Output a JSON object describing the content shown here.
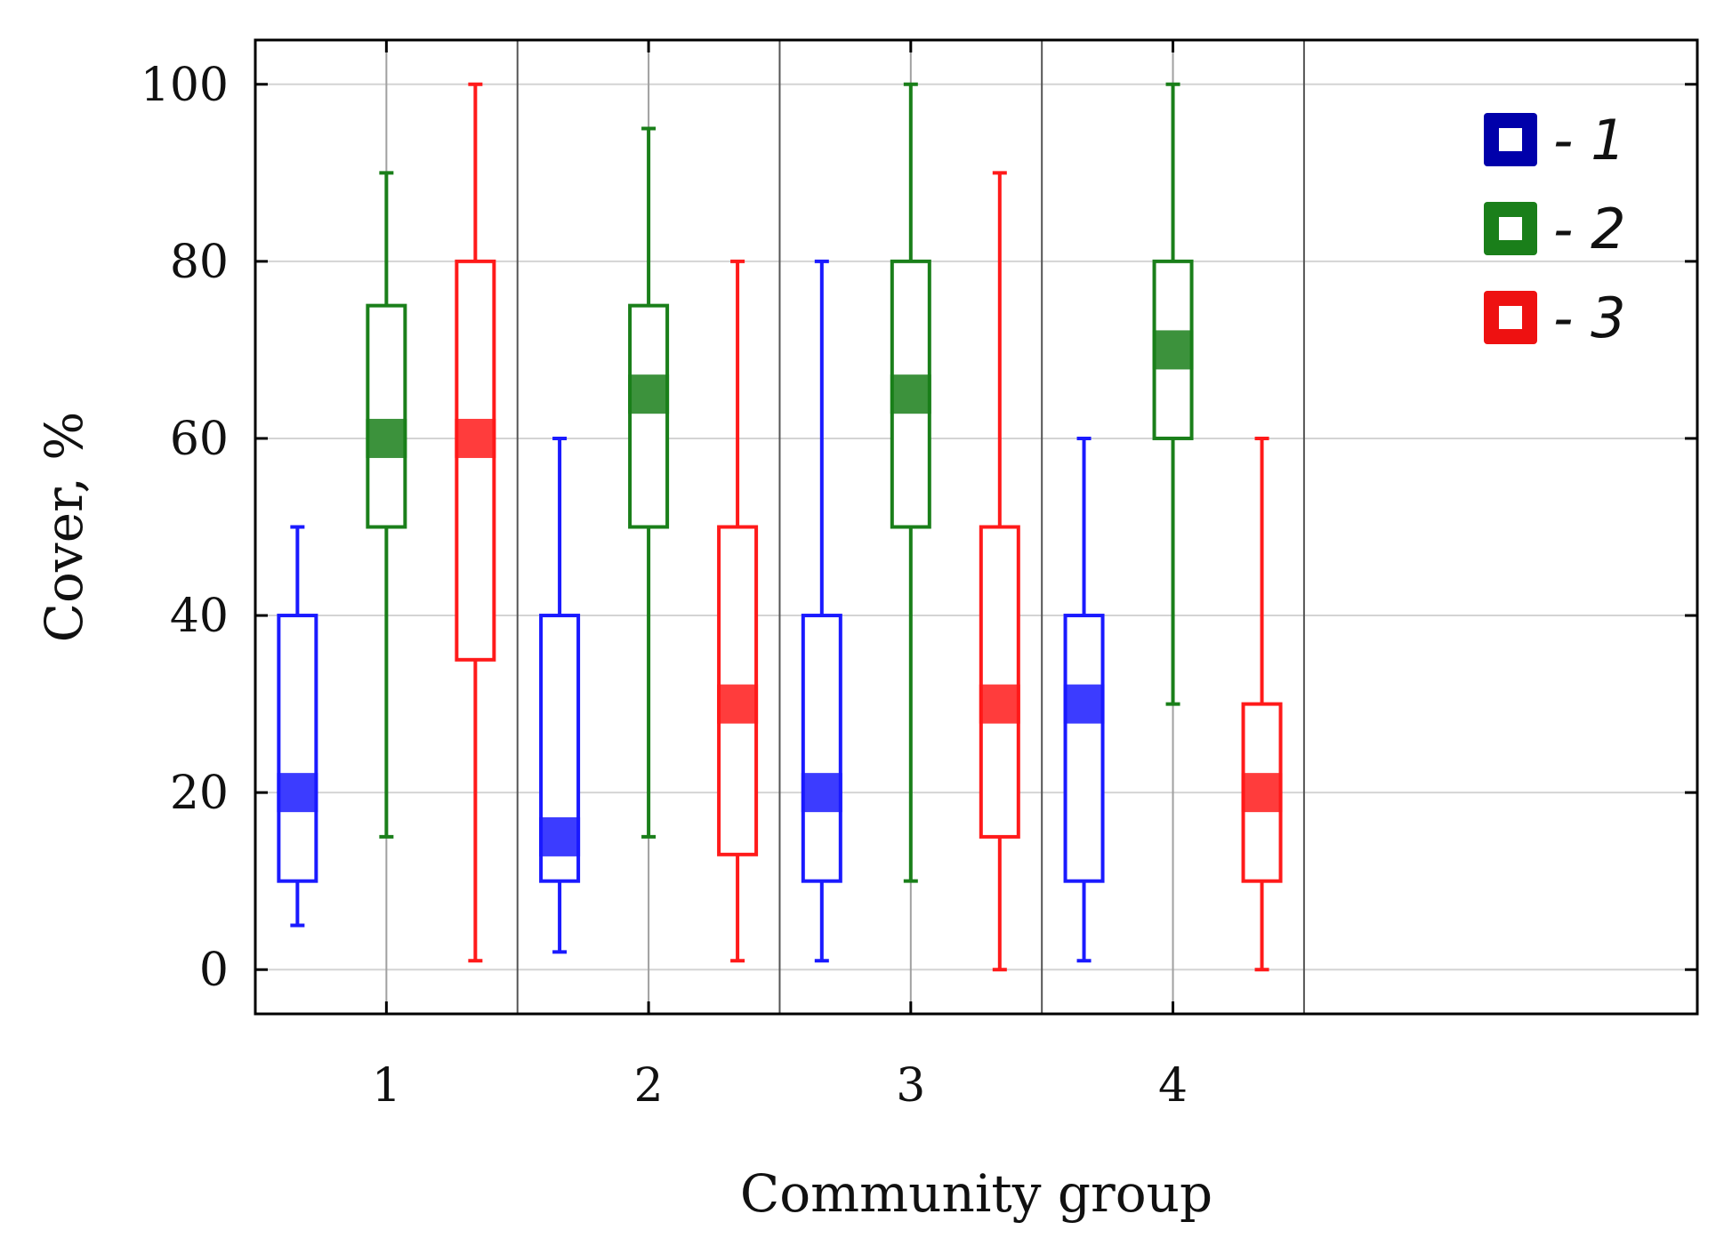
{
  "chart_data": {
    "type": "boxplot",
    "title": "",
    "xlabel": "Community group",
    "ylabel": "Cover, %",
    "ylim": [
      -5,
      105
    ],
    "yticks": [
      0,
      20,
      40,
      60,
      80,
      100
    ],
    "grid": true,
    "legend_position": "top-right",
    "categories": [
      "1",
      "2",
      "3",
      "4"
    ],
    "series": [
      {
        "name": "1",
        "legend_label": "- 1",
        "color": "#1a1aff",
        "legend_color": "#0000aa",
        "boxes": [
          {
            "min": 5,
            "q1": 10,
            "median": 20,
            "q3": 40,
            "max": 50
          },
          {
            "min": 2,
            "q1": 10,
            "median": 15,
            "q3": 40,
            "max": 60
          },
          {
            "min": 1,
            "q1": 10,
            "median": 20,
            "q3": 40,
            "max": 80
          },
          {
            "min": 1,
            "q1": 10,
            "median": 30,
            "q3": 40,
            "max": 60
          }
        ]
      },
      {
        "name": "2",
        "legend_label": "- 2",
        "color": "#1a7f1a",
        "legend_color": "#1a7f1a",
        "boxes": [
          {
            "min": 15,
            "q1": 50,
            "median": 60,
            "q3": 75,
            "max": 90
          },
          {
            "min": 15,
            "q1": 50,
            "median": 65,
            "q3": 75,
            "max": 95
          },
          {
            "min": 10,
            "q1": 50,
            "median": 65,
            "q3": 80,
            "max": 100
          },
          {
            "min": 30,
            "q1": 60,
            "median": 70,
            "q3": 80,
            "max": 100
          }
        ]
      },
      {
        "name": "3",
        "legend_label": "- 3",
        "color": "#ff1a1a",
        "legend_color": "#ee1111",
        "boxes": [
          {
            "min": 1,
            "q1": 35,
            "median": 60,
            "q3": 80,
            "max": 100
          },
          {
            "min": 1,
            "q1": 13,
            "median": 30,
            "q3": 50,
            "max": 80
          },
          {
            "min": 0,
            "q1": 15,
            "median": 30,
            "q3": 50,
            "max": 90
          },
          {
            "min": 0,
            "q1": 10,
            "median": 20,
            "q3": 30,
            "max": 60
          }
        ]
      }
    ]
  }
}
